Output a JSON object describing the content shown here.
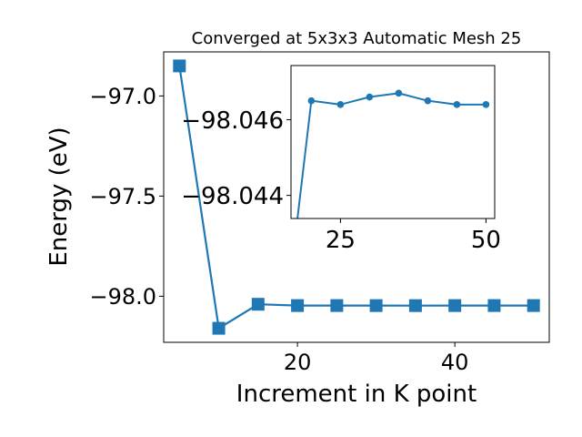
{
  "chart_data": [
    {
      "type": "line",
      "title": "Converged at 5x3x3 Automatic Mesh 25",
      "xlabel": "Increment in K point",
      "ylabel": "Energy (eV)",
      "xlim": [
        3.0,
        52.0
      ],
      "ylim": [
        -98.23,
        -96.78
      ],
      "x_ticks": [
        20,
        40
      ],
      "y_ticks": [
        -98.0,
        -97.5,
        -97.0
      ],
      "x_tick_labels": [
        "20",
        "40"
      ],
      "y_tick_labels": [
        "−98.0",
        "−97.5",
        "−97.0"
      ],
      "grid": false,
      "marker": "square",
      "color": "#1f77b4",
      "x": [
        5,
        10,
        15,
        20,
        25,
        30,
        35,
        40,
        45,
        50
      ],
      "y": [
        -96.85,
        -98.16,
        -98.04,
        -98.0465,
        -98.0464,
        -98.0466,
        -98.0467,
        -98.0465,
        -98.0464,
        -98.0464
      ]
    },
    {
      "type": "line",
      "inset": true,
      "title": "",
      "xlabel": "",
      "ylabel": "",
      "xlim": [
        16.5,
        51.5
      ],
      "ylim": [
        -98.04339,
        -98.04743
      ],
      "x_ticks": [
        25,
        50
      ],
      "y_ticks": [
        -98.046,
        -98.044
      ],
      "x_tick_labels": [
        "25",
        "50"
      ],
      "y_tick_labels": [
        "−98.046",
        "−98.044"
      ],
      "grid": false,
      "marker": "circle",
      "color": "#1f77b4",
      "x": [
        15,
        20,
        25,
        30,
        35,
        40,
        45,
        50
      ],
      "y": [
        -98.04,
        -98.0465,
        -98.0464,
        -98.0466,
        -98.0467,
        -98.0465,
        -98.0464,
        -98.0464
      ]
    }
  ]
}
